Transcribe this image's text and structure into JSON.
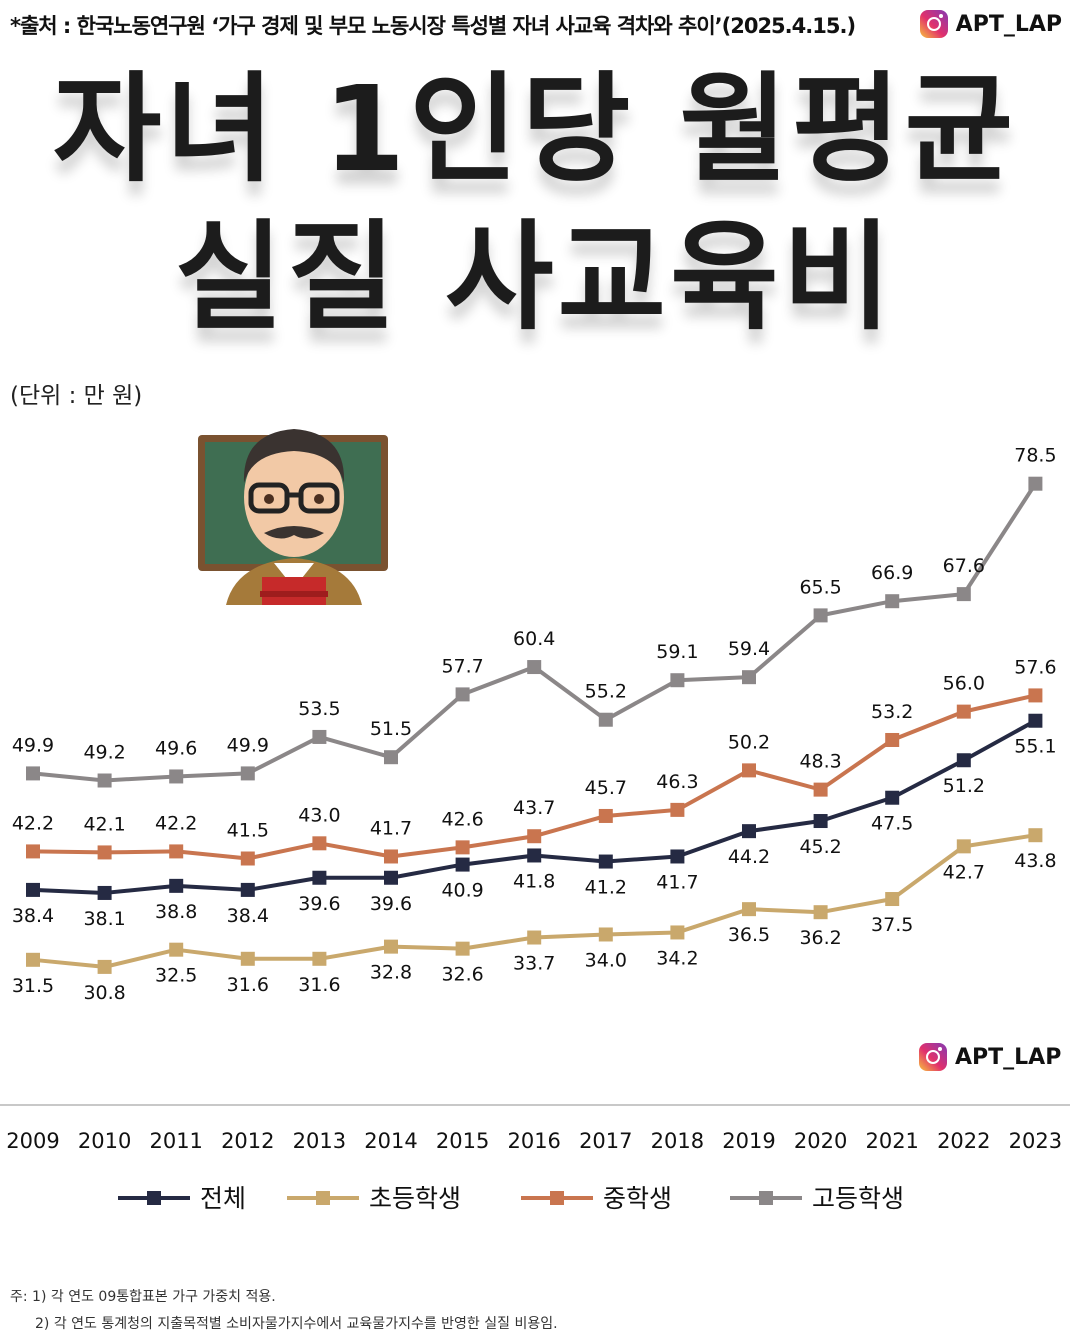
{
  "header": {
    "source": "*출처 : 한국노동연구원 ‘가구 경제 및 부모 노동시장 특성별 자녀 사교육 격차와 추이’(2025.4.15.)",
    "brand": "APT_LAP",
    "title_line1": "자녀 1인당 월평균",
    "title_line2": "실질 사교육비",
    "unit": "(단위 : 만 원)"
  },
  "watermark": {
    "brand": "APT_LAP"
  },
  "notes": {
    "line1": "주: 1) 각 연도 09통합표본 가구 가중치 적용.",
    "line2": "2) 각 연도 통계청의 지출목적별 소비자물가지수에서 교육물가지수를 반영한 실질 비용임."
  },
  "icons": {
    "brand_icon": "instagram-icon",
    "illustration": "teacher-emoji-icon"
  },
  "chart_data": {
    "type": "line",
    "title": "자녀 1인당 월평균 실질 사교육비",
    "unit": "(단위 : 만 원)",
    "x": [
      "2009",
      "2010",
      "2011",
      "2012",
      "2013",
      "2014",
      "2015",
      "2016",
      "2017",
      "2018",
      "2019",
      "2020",
      "2021",
      "2022",
      "2023"
    ],
    "ylim": [
      28,
      80
    ],
    "grid": false,
    "legend_position": "bottom",
    "series": [
      {
        "name": "전체",
        "color": "#252a43",
        "label_pos": "below",
        "values": [
          38.4,
          38.1,
          38.8,
          38.4,
          39.6,
          39.6,
          40.9,
          41.8,
          41.2,
          41.7,
          44.2,
          45.2,
          47.5,
          51.2,
          55.1
        ],
        "labels": [
          "38.4",
          "38.1",
          "38.8",
          "38.4",
          "39.6",
          "39.6",
          "40.9",
          "41.8",
          "41.2",
          "41.7",
          "44.2",
          "45.2",
          "47.5",
          "51.2",
          "55.1"
        ]
      },
      {
        "name": "초등학생",
        "color": "#c9a86c",
        "label_pos": "below",
        "values": [
          31.5,
          30.8,
          32.5,
          31.6,
          31.6,
          32.8,
          32.6,
          33.7,
          34.0,
          34.2,
          36.5,
          36.2,
          37.5,
          42.7,
          43.8
        ],
        "labels": [
          "31.5",
          "30.8",
          "32.5",
          "31.6",
          "31.6",
          "32.8",
          "32.6",
          "33.7",
          "34.0",
          "34.2",
          "36.5",
          "36.2",
          "37.5",
          "42.7",
          "43.8"
        ]
      },
      {
        "name": "중학생",
        "color": "#c9754f",
        "label_pos": "above",
        "values": [
          42.2,
          42.1,
          42.2,
          41.5,
          43.0,
          41.7,
          42.6,
          43.7,
          45.7,
          46.3,
          50.2,
          48.3,
          53.2,
          56.0,
          57.6
        ],
        "labels": [
          "42.2",
          "42.1",
          "42.2",
          "41.5",
          "43.0",
          "41.7",
          "42.6",
          "43.7",
          "45.7",
          "46.3",
          "50.2",
          "48.3",
          "53.2",
          "56.0",
          "57.6"
        ]
      },
      {
        "name": "고등학생",
        "color": "#8b8788",
        "label_pos": "above",
        "values": [
          49.9,
          49.2,
          49.6,
          49.9,
          53.5,
          51.5,
          57.7,
          60.4,
          55.2,
          59.1,
          59.4,
          65.5,
          66.9,
          67.6,
          78.5
        ],
        "labels": [
          "49.9",
          "49.2",
          "49.6",
          "49.9",
          "53.5",
          "51.5",
          "57.7",
          "60.4",
          "55.2",
          "59.1",
          "59.4",
          "65.5",
          "66.9",
          "67.6",
          "78.5"
        ]
      }
    ]
  }
}
